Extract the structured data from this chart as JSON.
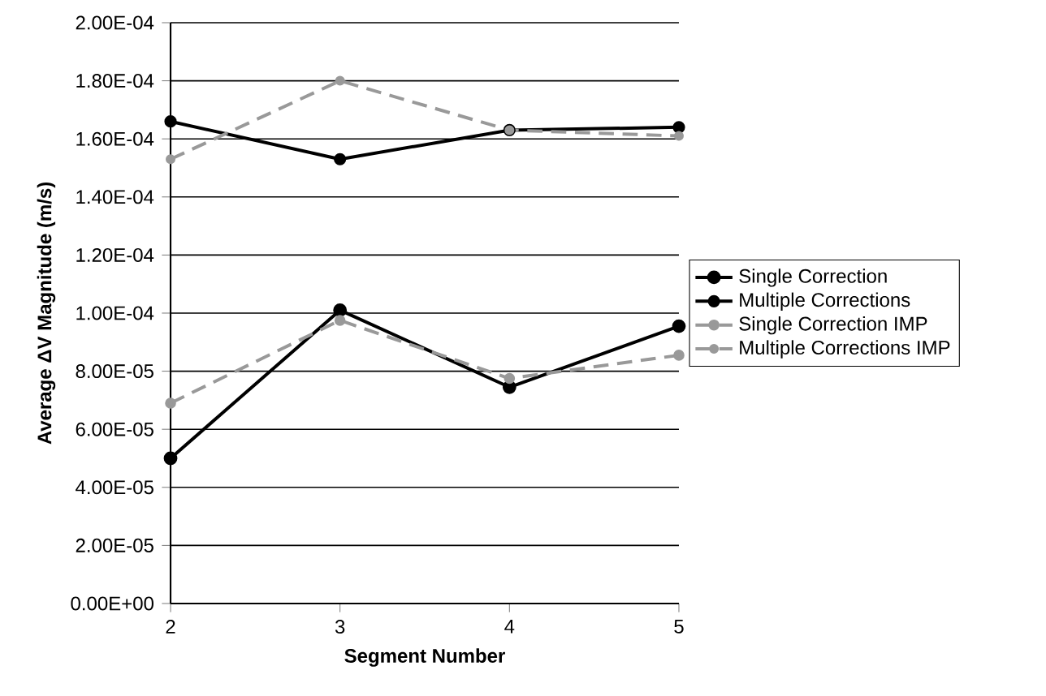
{
  "chart_data": {
    "type": "line",
    "xlabel": "Segment Number",
    "ylabel": "Average ΔV Magnitude (m/s)",
    "x": [
      2,
      3,
      4,
      5
    ],
    "series": [
      {
        "name": "Single Correction",
        "color": "#000000",
        "line_style": "solid",
        "values": [
          5e-05,
          0.000101,
          7.45e-05,
          9.55e-05
        ]
      },
      {
        "name": "Multiple Corrections",
        "color": "#000000",
        "line_style": "solid",
        "values": [
          0.000166,
          0.000153,
          0.000163,
          0.000164
        ]
      },
      {
        "name": "Single Correction IMP",
        "color": "#999999",
        "line_style": "dashed",
        "values": [
          6.9e-05,
          9.75e-05,
          7.75e-05,
          8.55e-05
        ]
      },
      {
        "name": "Multiple Corrections IMP",
        "color": "#999999",
        "line_style": "dashed",
        "values": [
          0.000153,
          0.00018,
          0.000163,
          0.000161
        ]
      }
    ],
    "xlim": [
      2,
      5
    ],
    "xticks": [
      2,
      3,
      4,
      5
    ],
    "ylim": [
      0,
      0.0002
    ],
    "yticks": [
      {
        "value": 0,
        "label": "0.00E+00"
      },
      {
        "value": 2e-05,
        "label": "2.00E-05"
      },
      {
        "value": 4e-05,
        "label": "4.00E-05"
      },
      {
        "value": 6e-05,
        "label": "6.00E-05"
      },
      {
        "value": 8e-05,
        "label": "8.00E-05"
      },
      {
        "value": 0.0001,
        "label": "1.00E-04"
      },
      {
        "value": 0.00012,
        "label": "1.20E-04"
      },
      {
        "value": 0.00014,
        "label": "1.40E-04"
      },
      {
        "value": 0.00016,
        "label": "1.60E-04"
      },
      {
        "value": 0.00018,
        "label": "1.80E-04"
      },
      {
        "value": 0.0002,
        "label": "2.00E-04"
      }
    ],
    "grid": "y",
    "legend": "right",
    "marker": "circle"
  }
}
